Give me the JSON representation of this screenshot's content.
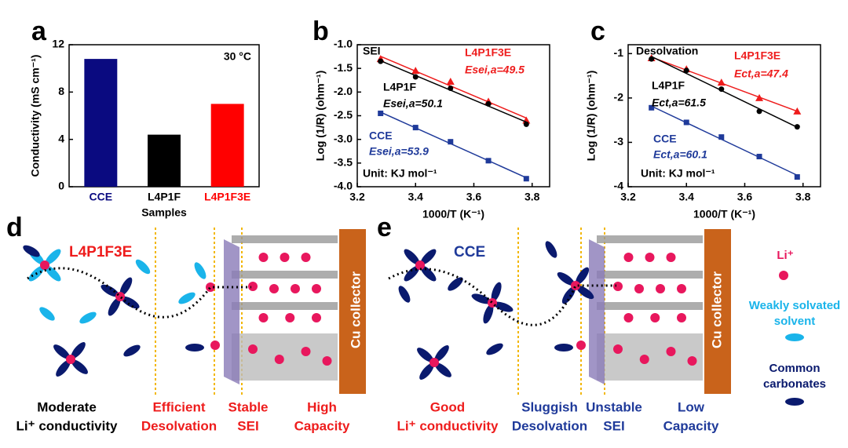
{
  "chart_data": [
    {
      "type": "bar",
      "panel_label": "a",
      "annotation": "30 °C",
      "categories": [
        "CCE",
        "L4P1F",
        "L4P1F3E"
      ],
      "values": [
        10.8,
        4.4,
        7.0
      ],
      "colors": [
        "#0a0a80",
        "#000000",
        "#ff0000"
      ],
      "xlabel": "Samples",
      "ylabel": "Conductivity (mS cm⁻¹)",
      "ylim": [
        0,
        12
      ],
      "yticks": [
        0,
        4,
        8,
        12
      ]
    },
    {
      "type": "line",
      "panel_label": "b",
      "xlabel": "1000/T (K⁻¹)",
      "ylabel": "Log (1/R) (ohm⁻¹)",
      "x": [
        3.28,
        3.4,
        3.52,
        3.65,
        3.78
      ],
      "xlim": [
        3.2,
        3.86
      ],
      "xticks": [
        3.2,
        3.4,
        3.6,
        3.8
      ],
      "ylim": [
        -4.0,
        -1.0
      ],
      "yticks": [
        {
          "value": -4,
          "label": "-4.0"
        },
        -3.5,
        {
          "value": -3,
          "label": "-3.0"
        },
        -2.5,
        {
          "value": -2,
          "label": "-2.0"
        },
        -1.5,
        {
          "value": -1,
          "label": "-1.0"
        }
      ],
      "series": [
        {
          "name": "L4P1F3E",
          "color": "#ee1c1c",
          "marker": "triangle",
          "values": [
            -1.3,
            -1.55,
            -1.78,
            -2.2,
            -2.6
          ]
        },
        {
          "name": "L4P1F",
          "color": "#000000",
          "marker": "circle",
          "values": [
            -1.35,
            -1.68,
            -1.92,
            -2.25,
            -2.68
          ]
        },
        {
          "name": "CCE",
          "color": "#1f3a9a",
          "marker": "square",
          "values": [
            -2.45,
            -2.75,
            -3.05,
            -3.45,
            -3.83
          ]
        }
      ],
      "annotations": [
        {
          "text": "SEI",
          "color": "#000"
        },
        {
          "text": "Esei,a=49.5",
          "color": "#ee1c1c"
        },
        {
          "text": "Esei,a=50.1",
          "color": "#000"
        },
        {
          "text": "Esei,a=53.9",
          "color": "#1f3a9a"
        },
        {
          "text": "Unit: KJ mol⁻¹",
          "color": "#000"
        }
      ]
    },
    {
      "type": "line",
      "panel_label": "c",
      "xlabel": "1000/T (K⁻¹)",
      "ylabel": "Log (1/R) (ohm⁻¹)",
      "x": [
        3.28,
        3.4,
        3.52,
        3.65,
        3.78
      ],
      "xlim": [
        3.2,
        3.86
      ],
      "xticks": [
        3.2,
        3.4,
        3.6,
        3.8
      ],
      "ylim": [
        -4,
        -0.8
      ],
      "yticks": [
        -4,
        -3,
        -2,
        -1
      ],
      "series": [
        {
          "name": "L4P1F3E",
          "color": "#ee1c1c",
          "marker": "triangle",
          "values": [
            -1.1,
            -1.35,
            -1.65,
            -2.0,
            -2.3
          ]
        },
        {
          "name": "L4P1F",
          "color": "#000000",
          "marker": "circle",
          "values": [
            -1.12,
            -1.38,
            -1.8,
            -2.3,
            -2.65
          ]
        },
        {
          "name": "CCE",
          "color": "#1f3a9a",
          "marker": "square",
          "values": [
            -2.22,
            -2.55,
            -2.88,
            -3.32,
            -3.78
          ]
        }
      ],
      "annotations": [
        {
          "text": "Desolvation",
          "color": "#000"
        },
        {
          "text": "Ect,a=47.4",
          "color": "#ee1c1c"
        },
        {
          "text": "Ect,a=61.5",
          "color": "#000"
        },
        {
          "text": "Ect,a=60.1",
          "color": "#1f3a9a"
        },
        {
          "text": "Unit: KJ mol⁻¹",
          "color": "#000"
        }
      ]
    }
  ],
  "diagram_d": {
    "label": "d",
    "electrolyte": "L4P1F3E",
    "collector": "Cu collector",
    "captions": [
      [
        "Moderate",
        "Li⁺ conductivity"
      ],
      [
        "Efficient",
        "Desolvation"
      ],
      [
        "Stable",
        "SEI"
      ],
      [
        "High",
        "Capacity"
      ]
    ]
  },
  "diagram_e": {
    "label": "e",
    "electrolyte": "CCE",
    "collector": "Cu collector",
    "captions": [
      [
        "Good",
        "Li⁺ conductivity"
      ],
      [
        "Sluggish",
        "Desolvation"
      ],
      [
        "Unstable",
        "SEI"
      ],
      [
        "Low",
        "Capacity"
      ]
    ]
  },
  "legend": {
    "li": "Li⁺",
    "weak": [
      "Weakly solvated",
      "solvent"
    ],
    "common": [
      "Common",
      "carbonates"
    ]
  }
}
